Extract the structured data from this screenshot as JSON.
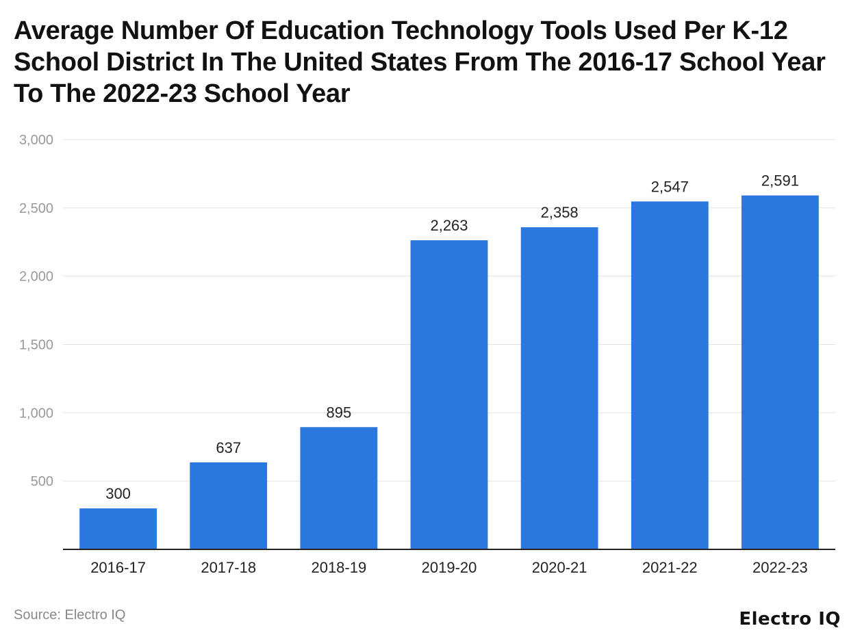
{
  "chart_data": {
    "type": "bar",
    "title": "Average Number Of Education Technology Tools Used Per K-12 School District In The United States From The 2016-17 School Year To The 2022-23 School Year",
    "categories": [
      "2016-17",
      "2017-18",
      "2018-19",
      "2019-20",
      "2020-21",
      "2021-22",
      "2022-23"
    ],
    "values": [
      300,
      637,
      895,
      2263,
      2358,
      2547,
      2591
    ],
    "value_labels": [
      "300",
      "637",
      "895",
      "2,263",
      "2,358",
      "2,547",
      "2,591"
    ],
    "ylim": [
      0,
      3000
    ],
    "yticks": [
      500,
      1000,
      1500,
      2000,
      2500,
      3000
    ],
    "ytick_labels": [
      "500",
      "1,000",
      "1,500",
      "2,000",
      "2,500",
      "3,000"
    ],
    "xlabel": "",
    "ylabel": "",
    "grid": true,
    "bar_color": "#2a77dd"
  },
  "footer": {
    "source": "Source: Electro IQ",
    "brand": "Electro IQ"
  }
}
